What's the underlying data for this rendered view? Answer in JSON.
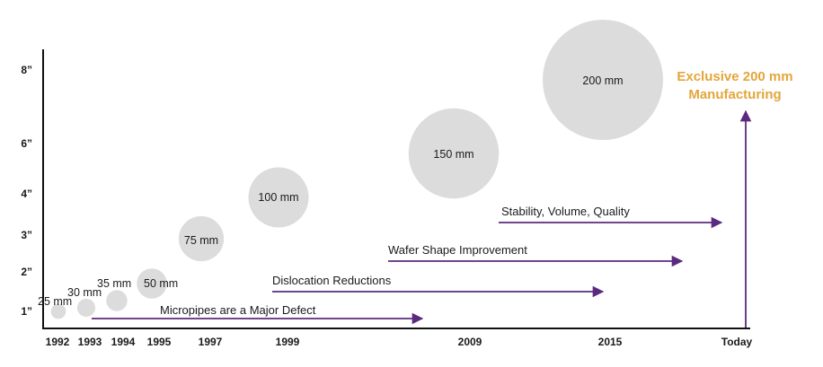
{
  "chart_data": {
    "type": "scatter",
    "x_ticks": [
      "1992",
      "1993",
      "1994",
      "1995",
      "1997",
      "1999",
      "2009",
      "2015",
      "Today"
    ],
    "y_ticks": [
      "1”",
      "2”",
      "3”",
      "4”",
      "6”",
      "8”"
    ],
    "wafers": [
      {
        "year": "1992",
        "size_mm": 25,
        "label": "25 mm"
      },
      {
        "year": "1993",
        "size_mm": 30,
        "label": "30 mm"
      },
      {
        "year": "1994",
        "size_mm": 35,
        "label": "35 mm"
      },
      {
        "year": "1995",
        "size_mm": 50,
        "label": "50 mm"
      },
      {
        "year": "1997",
        "size_mm": 75,
        "label": "75 mm"
      },
      {
        "year": "1999",
        "size_mm": 100,
        "label": "100 mm"
      },
      {
        "year": "2009",
        "size_mm": 150,
        "label": "150 mm"
      },
      {
        "year": "2015",
        "size_mm": 200,
        "label": "200 mm"
      }
    ],
    "phases": [
      {
        "label": "Micropipes are a Major Defect",
        "start": "1993",
        "end": "2009"
      },
      {
        "label": "Dislocation Reductions",
        "start": "1999",
        "end": "2015"
      },
      {
        "label": "Wafer Shape Improvement",
        "start": "2009",
        "end": "2015"
      },
      {
        "label": "Stability, Volume, Quality",
        "start": "2009",
        "end": "Today"
      }
    ],
    "callout": {
      "line1": "Exclusive 200 mm",
      "line2": "Manufacturing"
    },
    "colors": {
      "bubble": "#dcdcdd",
      "arrow": "#5b2a7e",
      "callout": "#e3a63a",
      "axis": "#111111",
      "text": "#1a1a1a"
    }
  }
}
